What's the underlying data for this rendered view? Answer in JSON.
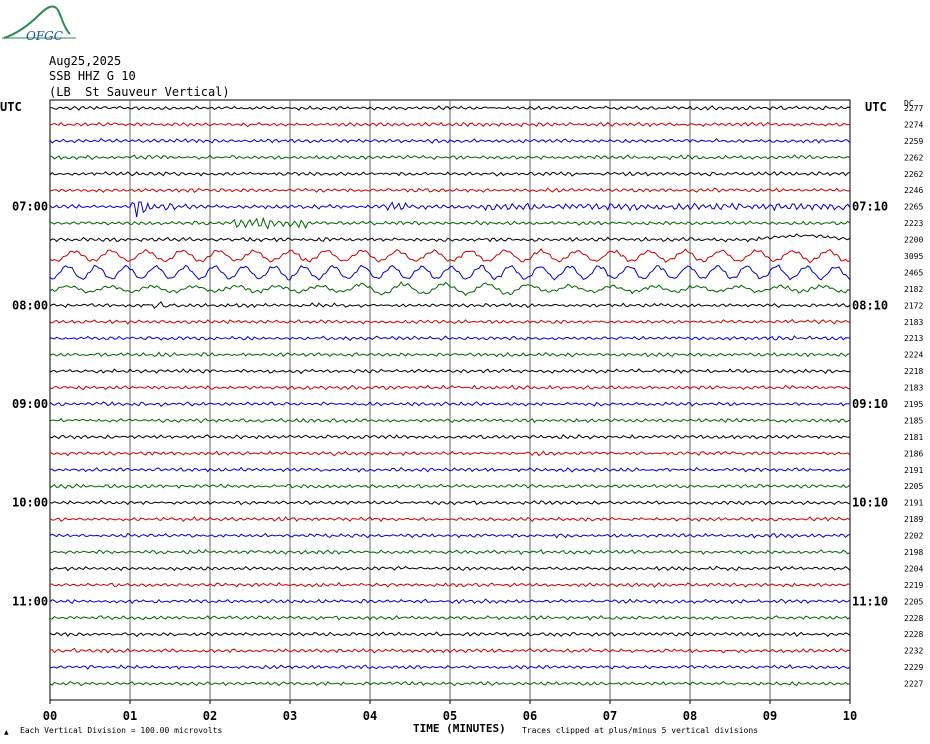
{
  "logo": {
    "text": "OFGC"
  },
  "header": {
    "date": "Aug25,2025",
    "station": "SSB HHZ G 10",
    "location": "(LB  St Sauveur Vertical)"
  },
  "colors": {
    "trace_cycle": [
      "#000000",
      "#cc0000",
      "#0000cc",
      "#006600"
    ],
    "grid": "#666666"
  },
  "chart_data": {
    "type": "line",
    "title": "",
    "xlabel": "TIME (MINUTES)",
    "ylabel": "",
    "left_axis_title": "UTC",
    "right_axis_title": "UTC",
    "dc_header": "DC",
    "xlim": [
      0,
      10
    ],
    "x_ticks": [
      "00",
      "01",
      "02",
      "03",
      "04",
      "05",
      "06",
      "07",
      "08",
      "09",
      "10"
    ],
    "left_time_labels": [
      "07:00",
      "08:00",
      "09:00",
      "10:00",
      "11:00"
    ],
    "right_time_labels": [
      "07:10",
      "08:10",
      "09:10",
      "10:10",
      "11:10"
    ],
    "dc_offsets": [
      "2277",
      "2274",
      "2259",
      "2262",
      "2262",
      "2246",
      "2265",
      "2223",
      "2200",
      "3095",
      "2465",
      "2182",
      "2172",
      "2183",
      "2213",
      "2224",
      "2218",
      "2183",
      "2195",
      "2185",
      "2181",
      "2186",
      "2191",
      "2205",
      "2191",
      "2189",
      "2202",
      "2198",
      "2204",
      "2219",
      "2205",
      "2228",
      "2228",
      "2232",
      "2229",
      "2227"
    ],
    "footer_left": "Each Vertical Division =  100.00 microvolts",
    "footer_right": "Traces clipped at plus/minus 5 vertical divisions",
    "annotations": [
      "Earthquake arrival near minute 01 on the 07:00 trace"
    ]
  }
}
